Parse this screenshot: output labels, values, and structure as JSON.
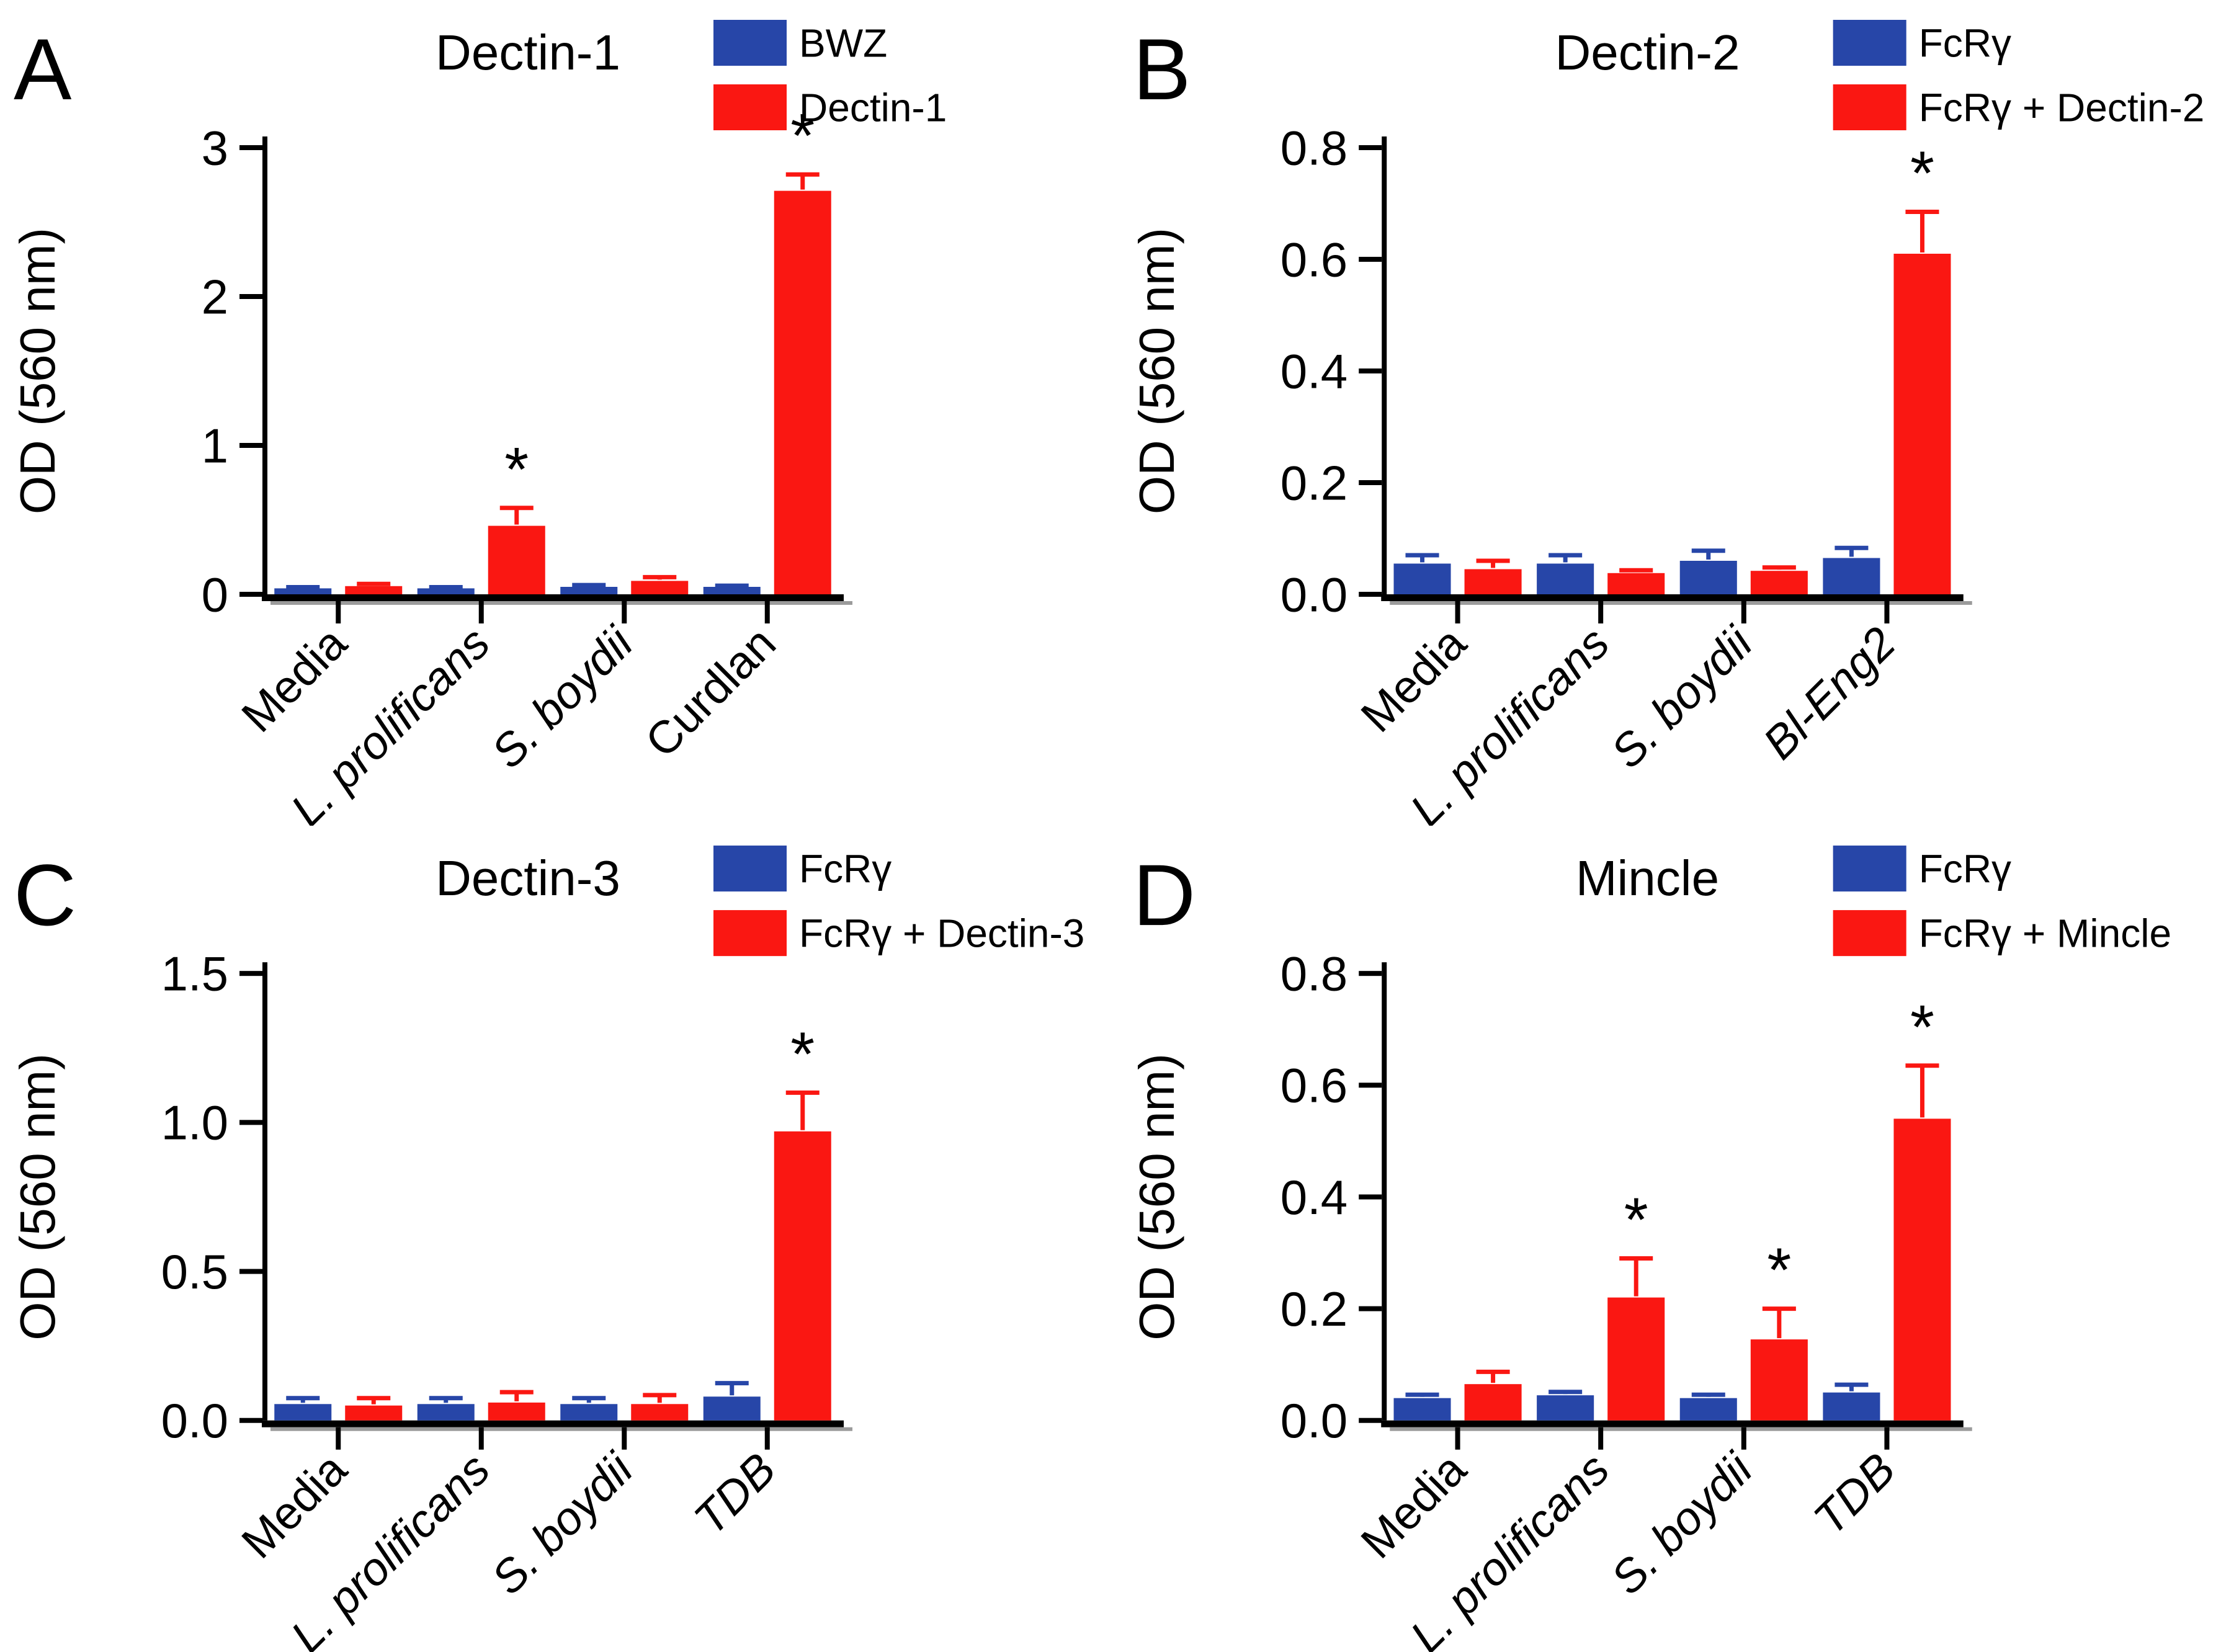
{
  "figure": {
    "background": "#ffffff",
    "sig_marker": "*",
    "colors": {
      "series1": "#2746A8",
      "series2": "#FA1712",
      "axis": "#000000",
      "axis_shadow": "#9b9b9b",
      "text": "#000000"
    }
  },
  "chart_data": [
    {
      "type": "bar",
      "panel_label": "A",
      "title": "Dectin-1",
      "ylabel": "OD (560 nm)",
      "ylim": [
        0,
        3
      ],
      "yticks": [
        {
          "v": 0,
          "label": "0"
        },
        {
          "v": 1,
          "label": "1"
        },
        {
          "v": 2,
          "label": "2"
        },
        {
          "v": 3,
          "label": "3"
        }
      ],
      "categories": [
        {
          "label": "Media",
          "italic": false
        },
        {
          "label": "L. prolificans",
          "italic": true
        },
        {
          "label": "S. boydii",
          "italic": true
        },
        {
          "label": "Curdlan",
          "italic": false
        }
      ],
      "legend": [
        {
          "label": "BWZ",
          "color_key": "series1"
        },
        {
          "label": "Dectin-1",
          "color_key": "series2"
        }
      ],
      "series": [
        {
          "name": "BWZ",
          "color_key": "series1",
          "values": [
            0.04,
            0.04,
            0.05,
            0.05
          ],
          "errors": [
            0.008,
            0.008,
            0.012,
            0.008
          ],
          "sig": [
            false,
            false,
            false,
            false
          ]
        },
        {
          "name": "Dectin-1",
          "color_key": "series2",
          "values": [
            0.055,
            0.46,
            0.09,
            2.71
          ],
          "errors": [
            0.015,
            0.12,
            0.025,
            0.11
          ],
          "sig": [
            false,
            true,
            false,
            true
          ]
        }
      ]
    },
    {
      "type": "bar",
      "panel_label": "B",
      "title": "Dectin-2",
      "ylabel": "OD (560 nm)",
      "ylim": [
        0,
        0.8
      ],
      "yticks": [
        {
          "v": 0,
          "label": "0.0"
        },
        {
          "v": 0.2,
          "label": "0.2"
        },
        {
          "v": 0.4,
          "label": "0.4"
        },
        {
          "v": 0.6,
          "label": "0.6"
        },
        {
          "v": 0.8,
          "label": "0.8"
        }
      ],
      "categories": [
        {
          "label": "Media",
          "italic": false
        },
        {
          "label": "L. prolificans",
          "italic": true
        },
        {
          "label": "S. boydii",
          "italic": true
        },
        {
          "label": "Bl-Eng2",
          "italic": true
        }
      ],
      "legend": [
        {
          "label": "FcRγ",
          "color_key": "series1"
        },
        {
          "label": "FcRγ + Dectin-2",
          "color_key": "series2"
        }
      ],
      "series": [
        {
          "name": "FcRγ",
          "color_key": "series1",
          "values": [
            0.055,
            0.055,
            0.06,
            0.065
          ],
          "errors": [
            0.015,
            0.015,
            0.018,
            0.018
          ],
          "sig": [
            false,
            false,
            false,
            false
          ]
        },
        {
          "name": "FcRγ + Dectin-2",
          "color_key": "series2",
          "values": [
            0.045,
            0.038,
            0.042,
            0.61
          ],
          "errors": [
            0.015,
            0.005,
            0.006,
            0.075
          ],
          "sig": [
            false,
            false,
            false,
            true
          ]
        }
      ]
    },
    {
      "type": "bar",
      "panel_label": "C",
      "title": "Dectin-3",
      "ylabel": "OD (560 nm)",
      "ylim": [
        0,
        1.5
      ],
      "yticks": [
        {
          "v": 0,
          "label": "0.0"
        },
        {
          "v": 0.5,
          "label": "0.5"
        },
        {
          "v": 1.0,
          "label": "1.0"
        },
        {
          "v": 1.5,
          "label": "1.5"
        }
      ],
      "categories": [
        {
          "label": "Media",
          "italic": false
        },
        {
          "label": "L. prolificans",
          "italic": true
        },
        {
          "label": "S. boydii",
          "italic": true
        },
        {
          "label": "TDB",
          "italic": true
        }
      ],
      "legend": [
        {
          "label": "FcRγ",
          "color_key": "series1"
        },
        {
          "label": "FcRγ + Dectin-3",
          "color_key": "series2"
        }
      ],
      "series": [
        {
          "name": "FcRγ",
          "color_key": "series1",
          "values": [
            0.055,
            0.055,
            0.055,
            0.08
          ],
          "errors": [
            0.02,
            0.02,
            0.02,
            0.045
          ],
          "sig": [
            false,
            false,
            false,
            false
          ]
        },
        {
          "name": "FcRγ + Dectin-3",
          "color_key": "series2",
          "values": [
            0.05,
            0.06,
            0.055,
            0.97
          ],
          "errors": [
            0.025,
            0.035,
            0.03,
            0.13
          ],
          "sig": [
            false,
            false,
            false,
            true
          ]
        }
      ]
    },
    {
      "type": "bar",
      "panel_label": "D",
      "title": "Mincle",
      "ylabel": "OD (560 nm)",
      "ylim": [
        0,
        0.8
      ],
      "yticks": [
        {
          "v": 0,
          "label": "0.0"
        },
        {
          "v": 0.2,
          "label": "0.2"
        },
        {
          "v": 0.4,
          "label": "0.4"
        },
        {
          "v": 0.6,
          "label": "0.6"
        },
        {
          "v": 0.8,
          "label": "0.8"
        }
      ],
      "categories": [
        {
          "label": "Media",
          "italic": false
        },
        {
          "label": "L. prolificans",
          "italic": true
        },
        {
          "label": "S. boydii",
          "italic": true
        },
        {
          "label": "TDB",
          "italic": true
        }
      ],
      "legend": [
        {
          "label": "FcRγ",
          "color_key": "series1"
        },
        {
          "label": "FcRγ + Mincle",
          "color_key": "series2"
        }
      ],
      "series": [
        {
          "name": "FcRγ",
          "color_key": "series1",
          "values": [
            0.04,
            0.045,
            0.04,
            0.05
          ],
          "errors": [
            0.006,
            0.006,
            0.006,
            0.014
          ],
          "sig": [
            false,
            false,
            false,
            false
          ]
        },
        {
          "name": "FcRγ + Mincle",
          "color_key": "series2",
          "values": [
            0.065,
            0.22,
            0.145,
            0.54
          ],
          "errors": [
            0.022,
            0.07,
            0.055,
            0.095
          ],
          "sig": [
            false,
            true,
            true,
            true
          ]
        }
      ]
    }
  ]
}
